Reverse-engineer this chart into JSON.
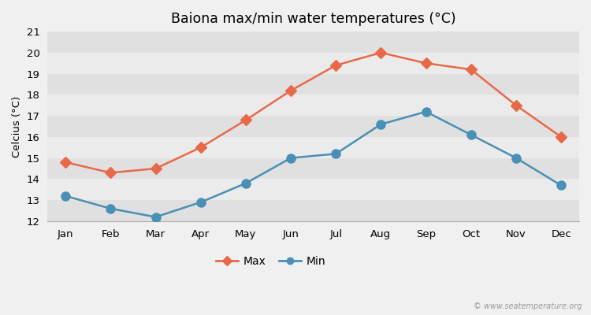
{
  "title": "Baiona max/min water temperatures (°C)",
  "ylabel": "Celcius (°C)",
  "months": [
    "Jan",
    "Feb",
    "Mar",
    "Apr",
    "May",
    "Jun",
    "Jul",
    "Aug",
    "Sep",
    "Oct",
    "Nov",
    "Dec"
  ],
  "max_temps": [
    14.8,
    14.3,
    14.5,
    15.5,
    16.8,
    18.2,
    19.4,
    20.0,
    19.5,
    19.2,
    17.5,
    16.0
  ],
  "min_temps": [
    13.2,
    12.6,
    12.2,
    12.9,
    13.8,
    15.0,
    15.2,
    16.6,
    17.2,
    16.1,
    15.0,
    13.7
  ],
  "max_color": "#e8694a",
  "min_color": "#4a8fb5",
  "bg_color": "#f0f0f0",
  "plot_bg_light": "#ebebeb",
  "plot_bg_dark": "#e0e0e0",
  "ylim": [
    12,
    21
  ],
  "yticks": [
    12,
    13,
    14,
    15,
    16,
    17,
    18,
    19,
    20,
    21
  ],
  "legend_labels": [
    "Max",
    "Min"
  ],
  "watermark": "© www.seatemperature.org",
  "grid_color": "#ffffff",
  "line_width": 1.8,
  "marker_size_max": 7,
  "marker_size_min": 8
}
